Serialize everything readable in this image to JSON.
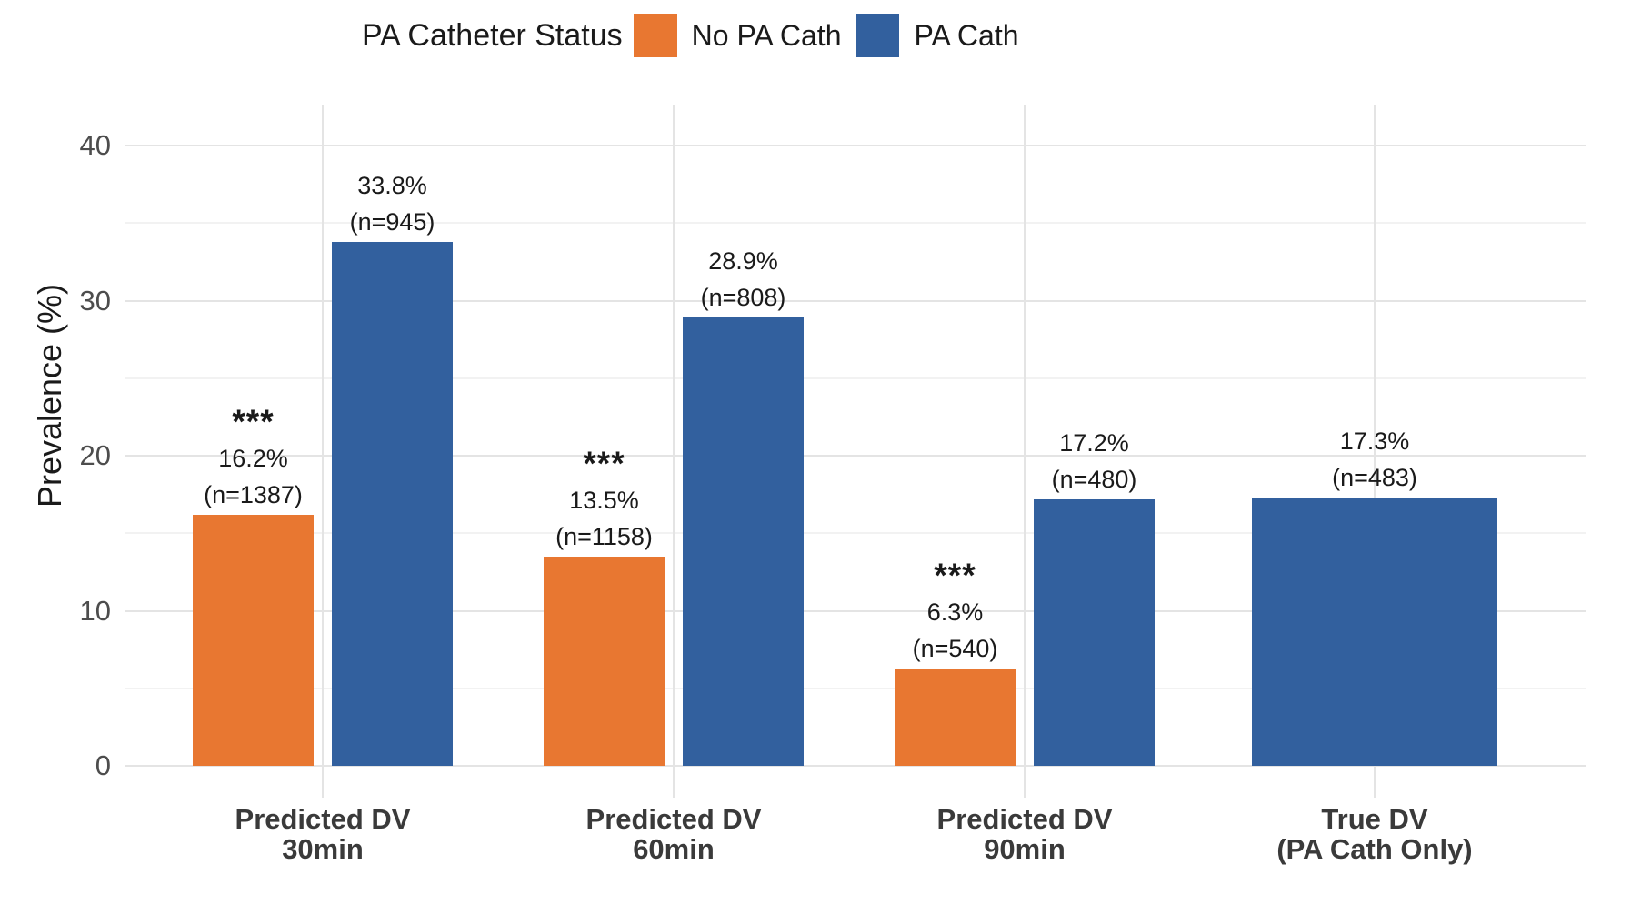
{
  "chart_data": {
    "type": "bar",
    "title": "",
    "legend_title": "PA Catheter Status",
    "legend_position": "top",
    "ylabel": "Prevalence (%)",
    "xlabel": "",
    "ylim": [
      0,
      40
    ],
    "yticks": [
      0,
      10,
      20,
      30,
      40
    ],
    "yticks_minor": [
      5,
      15,
      25,
      35
    ],
    "grid": "horizontal major+minor gridlines, vertical gridline at each category center",
    "categories": [
      {
        "line1": "Predicted DV",
        "line2": "30min"
      },
      {
        "line1": "Predicted DV",
        "line2": "60min"
      },
      {
        "line1": "Predicted DV",
        "line2": "90min"
      },
      {
        "line1": "True DV",
        "line2": "(PA Cath Only)"
      }
    ],
    "series": [
      {
        "name": "No PA Cath",
        "key": "no-pa-cath",
        "color": "#E87731",
        "values": [
          16.2,
          13.5,
          6.3,
          null
        ],
        "counts": [
          1387,
          1158,
          540,
          null
        ]
      },
      {
        "name": "PA Cath",
        "key": "pa-cath",
        "color": "#32609E",
        "values": [
          33.8,
          28.9,
          17.2,
          17.3
        ],
        "counts": [
          945,
          808,
          480,
          483
        ]
      }
    ],
    "significance": [
      "***",
      "***",
      "***",
      null
    ],
    "colors": {
      "grid_major": "#E4E4E4",
      "grid_minor": "#F2F2F2",
      "tick_label": "#4D4D4D",
      "text": "#1A1A1A"
    }
  }
}
